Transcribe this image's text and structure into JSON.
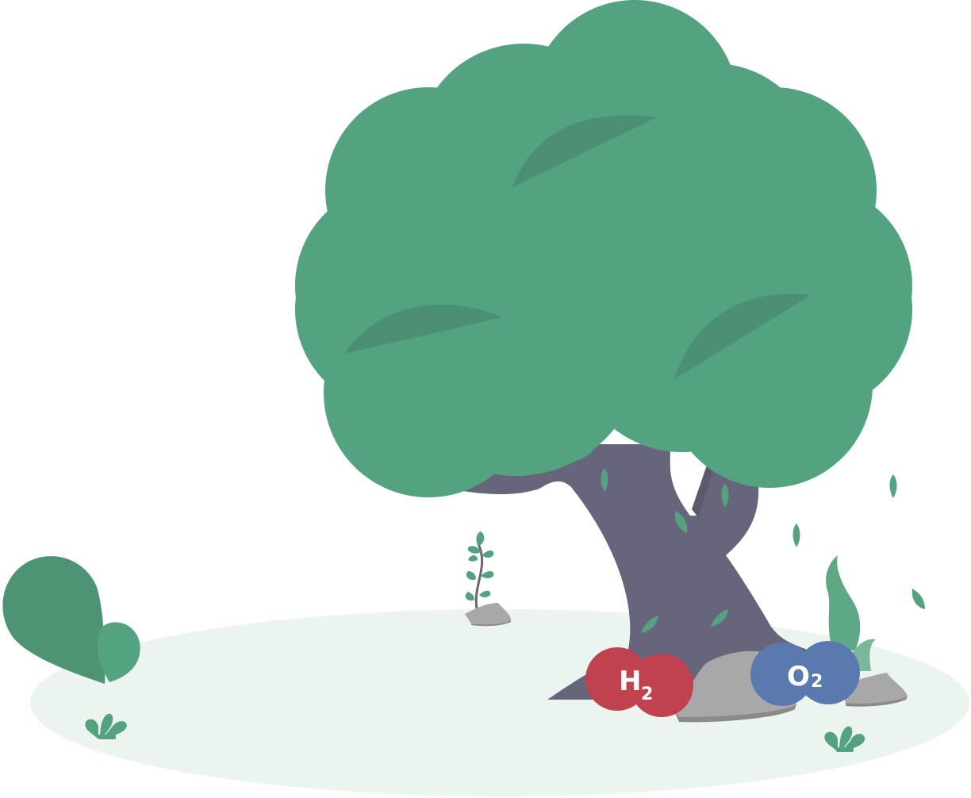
{
  "colors": {
    "background": "#ffffff",
    "ground": "#ecf4f0",
    "foliage": "#53a380",
    "foliage_shadow": "#4b9074",
    "foliage_dark": "#4c9474",
    "bush_light": "#5ea886",
    "bush_pale": "#79b89a",
    "trunk": "#67657c",
    "trunk_shadow": "#5c596f",
    "rock": "#a8a8a8",
    "rock_shadow": "#8a8a8a",
    "hydrogen": "#c1424f",
    "oxygen": "#5a7aaf",
    "label_text": "#ffffff"
  },
  "molecules": {
    "hydrogen": {
      "symbol": "H",
      "subscript": "2"
    },
    "oxygen": {
      "symbol": "O",
      "subscript": "2"
    }
  },
  "icons": [
    "tree-icon",
    "bush-icon",
    "sprout-icon",
    "rock-icon",
    "falling-leaf-icon",
    "hydrogen-molecule-icon",
    "oxygen-molecule-icon"
  ]
}
